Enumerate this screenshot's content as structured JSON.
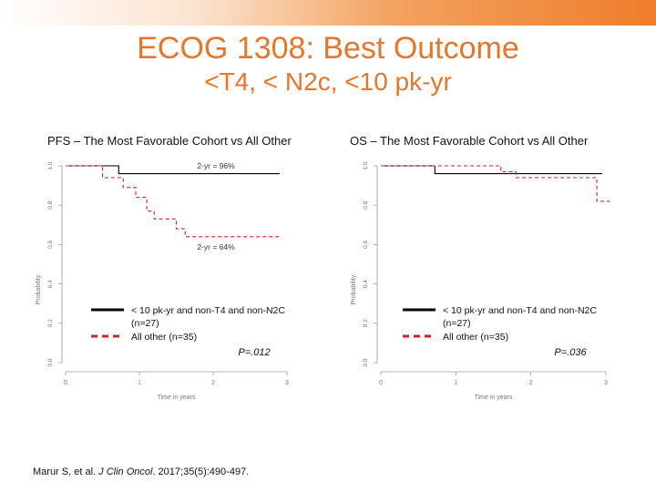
{
  "slide": {
    "title": "ECOG 1308: Best Outcome",
    "subtitle": "<T4, < N2c, <10 pk-yr",
    "citation_authors": "Marur S, et al. ",
    "citation_journal": "J Clin Oncol",
    "citation_rest": ". 2017;35(5):490-497."
  },
  "colors": {
    "accent": "#e5762a",
    "series1": "#000000",
    "series2": "#d62020"
  },
  "chart_data": [
    {
      "type": "line",
      "step": true,
      "title": "PFS – The Most Favorable Cohort vs All Other",
      "xlabel": "Time in years",
      "ylabel": "Probability",
      "xlim": [
        0,
        3
      ],
      "ylim": [
        0,
        1
      ],
      "xticks": [
        "0",
        "1",
        "2",
        "3"
      ],
      "yticks": [
        "0.0",
        "0.2",
        "0.4",
        "0.6",
        "0.8",
        "1.0"
      ],
      "grid": false,
      "legend_position": "lower-left",
      "series": [
        {
          "name": "< 10 pk-yr and non-T4 and non-N2C (n=27)",
          "style": "solid",
          "color": "#000000",
          "x": [
            0,
            0.72,
            2.9
          ],
          "y": [
            1.0,
            0.96,
            0.96
          ]
        },
        {
          "name": "All other (n=35)",
          "style": "dashed",
          "color": "#d62020",
          "x": [
            0,
            0.5,
            0.78,
            0.95,
            1.1,
            1.2,
            1.5,
            1.62,
            2.9
          ],
          "y": [
            1.0,
            0.94,
            0.89,
            0.84,
            0.77,
            0.73,
            0.68,
            0.64,
            0.64
          ]
        }
      ],
      "annotations": [
        "2-yr = 96%",
        "2-yr = 64%"
      ],
      "pvalue": "P=.012"
    },
    {
      "type": "line",
      "step": true,
      "title": "OS – The Most Favorable Cohort vs All Other",
      "xlabel": "Time in years",
      "ylabel": "Probability",
      "xlim": [
        0,
        3
      ],
      "ylim": [
        0,
        1
      ],
      "xticks": [
        "0",
        "1",
        "2",
        "3"
      ],
      "yticks": [
        "0.0",
        "0.2",
        "0.4",
        "0.6",
        "0.8",
        "1.0"
      ],
      "grid": false,
      "legend_position": "lower-left",
      "series": [
        {
          "name": "< 10 pk-yr and non-T4 and non-N2C (n=27)",
          "style": "solid",
          "color": "#000000",
          "x": [
            0,
            0.72,
            2.95
          ],
          "y": [
            1.0,
            0.96,
            0.96
          ]
        },
        {
          "name": "All other (n=35)",
          "style": "dashed",
          "color": "#d62020",
          "x": [
            0,
            1.6,
            1.8,
            2.88,
            3.05
          ],
          "y": [
            1.0,
            0.97,
            0.94,
            0.82,
            0.82
          ]
        }
      ],
      "annotations": [],
      "pvalue": "P=.036"
    }
  ]
}
